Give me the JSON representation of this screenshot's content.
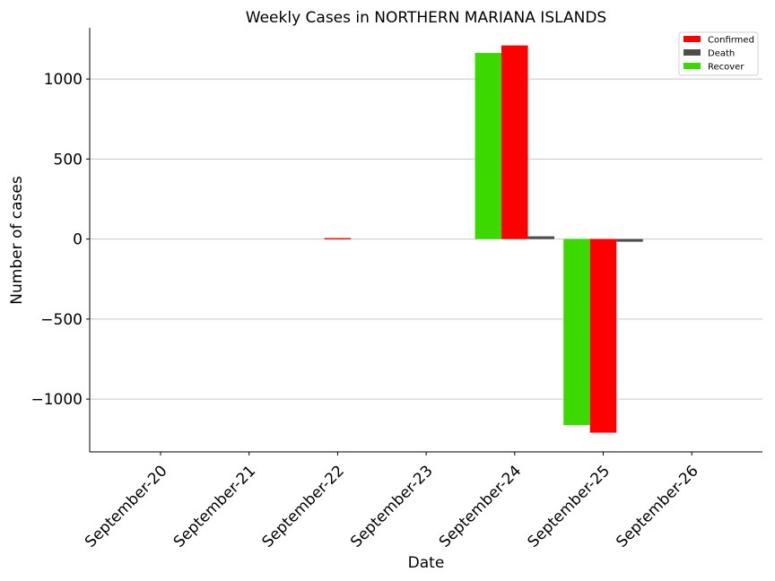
{
  "chart_data": {
    "type": "bar",
    "title": "Weekly Cases in NORTHERN MARIANA ISLANDS",
    "xlabel": "Date",
    "ylabel": "Number of cases",
    "categories": [
      "September-20",
      "September-21",
      "September-22",
      "September-23",
      "September-24",
      "September-25",
      "September-26"
    ],
    "series": [
      {
        "name": "Confirmed",
        "color": "#ff0000",
        "values": [
          0,
          0,
          6,
          0,
          1210,
          -1210,
          0
        ]
      },
      {
        "name": "Death",
        "color": "#4d4d4d",
        "values": [
          0,
          0,
          0,
          0,
          17,
          -17,
          0
        ]
      },
      {
        "name": "Recover",
        "color": "#3cd900",
        "values": [
          0,
          0,
          0,
          0,
          1163,
          -1163,
          0
        ]
      }
    ],
    "draw_order": [
      "Recover",
      "Confirmed",
      "Death"
    ],
    "ylim": [
      -1330,
      1320
    ],
    "yticks": [
      -1000,
      -500,
      0,
      500,
      1000
    ],
    "ytick_labels": [
      "−1000",
      "−500",
      "0",
      "500",
      "1000"
    ],
    "grid": "horizontal",
    "legend_position": "top-right"
  }
}
